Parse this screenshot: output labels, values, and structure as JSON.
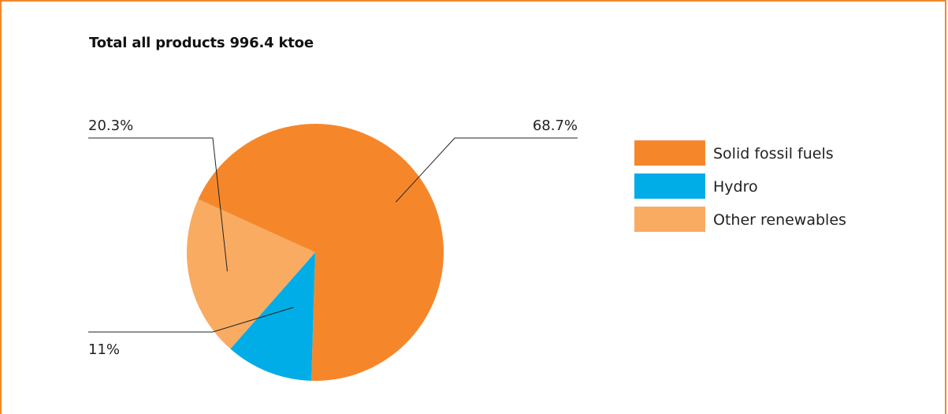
{
  "chart_data": {
    "type": "pie",
    "title": "Total all products 996.4 ktoe",
    "series": [
      {
        "name": "Solid fossil fuels",
        "value": 68.7,
        "label": "68.7%",
        "color": "#f5872a"
      },
      {
        "name": "Hydro",
        "value": 11,
        "label": "11%",
        "color": "#00ade6"
      },
      {
        "name": "Other renewables",
        "value": 20.3,
        "label": "20.3%",
        "color": "#f9ab62"
      }
    ],
    "legend_position": "right"
  },
  "border_color": "#f5872a"
}
